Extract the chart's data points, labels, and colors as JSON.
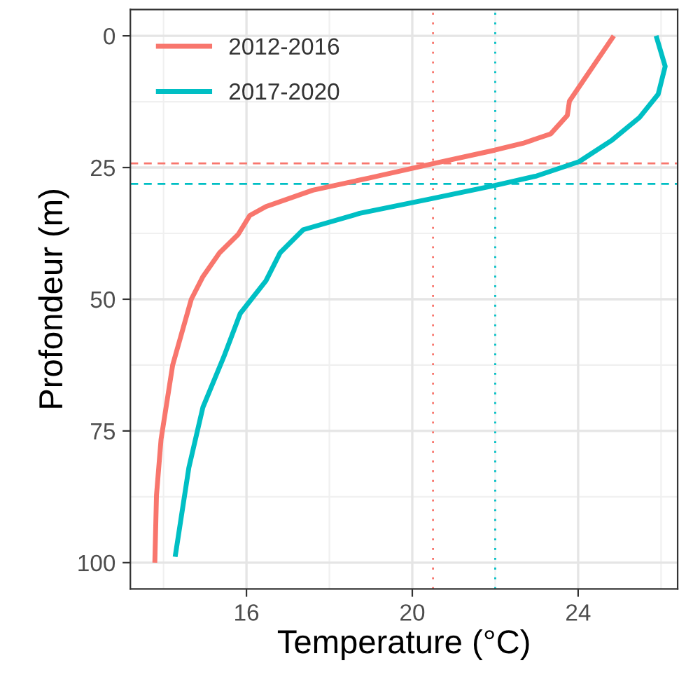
{
  "chart_data": {
    "type": "line",
    "xlabel": "Temperature (°C)",
    "ylabel": "Profondeur (m)",
    "xlim": [
      13.2,
      26.4
    ],
    "xticks": [
      16,
      20,
      24
    ],
    "ylim": [
      105,
      -5
    ],
    "yticks": [
      0,
      25,
      50,
      75,
      100
    ],
    "grid": true,
    "legend": "top left",
    "line_style": "solid",
    "marker": "none",
    "series": [
      {
        "name": "2012-2016",
        "color": "#f8766d",
        "x": [
          24.86,
          23.79,
          23.74,
          23.34,
          22.67,
          21.99,
          20.53,
          18.95,
          17.6,
          16.47,
          16.08,
          15.8,
          15.35,
          14.95,
          14.67,
          14.22,
          13.94,
          13.83,
          13.79
        ],
        "values": [
          0,
          12.4,
          15.1,
          18.6,
          20.4,
          21.7,
          24.2,
          27.0,
          29.3,
          32.4,
          34.1,
          37.7,
          41.2,
          45.7,
          50.0,
          62.5,
          76.6,
          87.2,
          100
        ]
      },
      {
        "name": "2017-2020",
        "color": "#00bfc4",
        "x": [
          25.88,
          26.1,
          25.93,
          25.48,
          24.8,
          24.02,
          23.0,
          21.99,
          20.41,
          18.73,
          17.37,
          16.81,
          16.47,
          15.85,
          15.46,
          14.95,
          14.61,
          14.28
        ],
        "values": [
          0,
          5.8,
          11.1,
          15.5,
          19.9,
          23.9,
          26.6,
          28.4,
          31.0,
          33.7,
          36.8,
          41.2,
          46.5,
          52.7,
          60.8,
          70.5,
          82.0,
          98.9
        ]
      }
    ],
    "ref_lines": [
      {
        "axis": "x",
        "value": 20.5,
        "color": "#f8766d",
        "line_style": "dotted"
      },
      {
        "axis": "x",
        "value": 22.0,
        "color": "#00bfc4",
        "line_style": "dotted"
      },
      {
        "axis": "y",
        "value": 24.2,
        "color": "#f8766d",
        "line_style": "dashed"
      },
      {
        "axis": "y",
        "value": 28.1,
        "color": "#00bfc4",
        "line_style": "dashed"
      }
    ]
  }
}
